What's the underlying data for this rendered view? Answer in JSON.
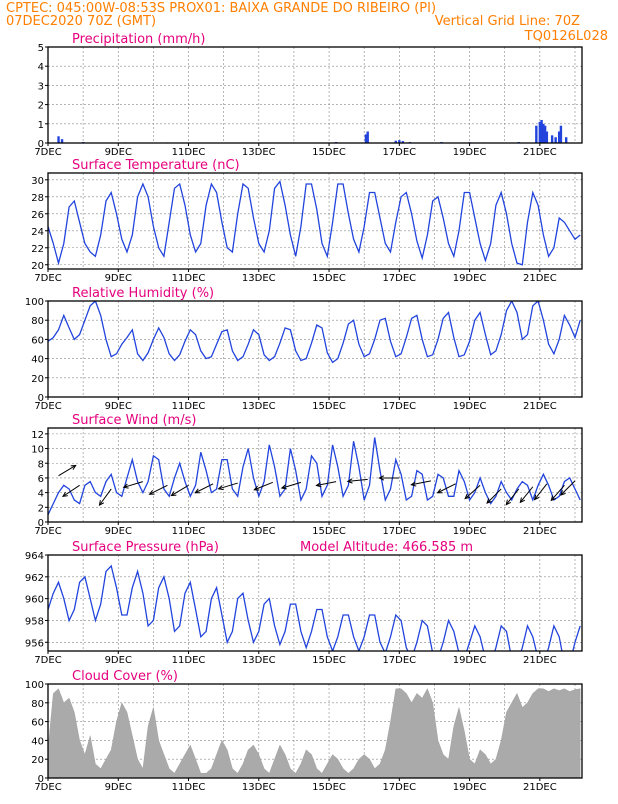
{
  "header": {
    "line1": "CPTEC:  045:00W-08:53S   PROX01: BAIXA GRANDE DO RIBEIRO (PI)",
    "line2_left": "07DEC2020 70Z (GMT)",
    "line2_right": "Vertical Grid Line: 70Z",
    "line3_right": "TQ0126L028"
  },
  "colors": {
    "header": "#ff7f00",
    "title": "#e6007e",
    "line": "#2244dd",
    "bar": "#2244dd",
    "cloud": "#aaaaaa"
  },
  "x_tick_labels": [
    "7DEC",
    "9DEC",
    "11DEC",
    "13DEC",
    "15DEC",
    "17DEC",
    "19DEC",
    "21DEC"
  ],
  "x_range_days": [
    7,
    22.2
  ],
  "chart_data": [
    {
      "type": "bar",
      "title": "Precipitation (mm/h)",
      "ylim": [
        0,
        5
      ],
      "yticks": [
        0,
        1,
        2,
        3,
        4,
        5
      ],
      "x": [
        7.3,
        7.4,
        8.0,
        9.2,
        10.4,
        11.6,
        12.8,
        14.0,
        15.2,
        16.05,
        16.1,
        16.9,
        17.0,
        17.1,
        17.3,
        18.2,
        19.0,
        19.4,
        20.4,
        20.9,
        21.0,
        21.05,
        21.1,
        21.15,
        21.2,
        21.35,
        21.45,
        21.55,
        21.6,
        21.75
      ],
      "values": [
        0.35,
        0.2,
        0.05,
        0.03,
        0.03,
        0.02,
        0.02,
        0.03,
        0.05,
        0.45,
        0.6,
        0.12,
        0.15,
        0.1,
        0.05,
        0.05,
        0.04,
        0.03,
        0.05,
        0.9,
        1.1,
        1.2,
        1.0,
        0.9,
        0.6,
        0.4,
        0.3,
        0.6,
        0.9,
        0.3
      ]
    },
    {
      "type": "line",
      "title": "Surface Temperature (nC)",
      "ylim": [
        19.5,
        30.8
      ],
      "yticks": [
        20,
        22,
        24,
        26,
        28,
        30
      ],
      "x": [
        7.0,
        7.15,
        7.3,
        7.45,
        7.6,
        7.75,
        7.9,
        8.05,
        8.2,
        8.35,
        8.5,
        8.65,
        8.8,
        8.95,
        9.1,
        9.25,
        9.4,
        9.55,
        9.7,
        9.85,
        10.0,
        10.15,
        10.3,
        10.45,
        10.6,
        10.75,
        10.9,
        11.05,
        11.2,
        11.35,
        11.5,
        11.65,
        11.8,
        11.95,
        12.1,
        12.25,
        12.4,
        12.55,
        12.7,
        12.85,
        13.0,
        13.15,
        13.3,
        13.45,
        13.6,
        13.75,
        13.9,
        14.05,
        14.2,
        14.35,
        14.5,
        14.65,
        14.8,
        14.95,
        15.1,
        15.25,
        15.4,
        15.55,
        15.7,
        15.85,
        16.0,
        16.15,
        16.3,
        16.45,
        16.6,
        16.75,
        16.9,
        17.05,
        17.2,
        17.35,
        17.5,
        17.65,
        17.8,
        17.95,
        18.1,
        18.25,
        18.4,
        18.55,
        18.7,
        18.85,
        19.0,
        19.15,
        19.3,
        19.45,
        19.6,
        19.75,
        19.9,
        20.05,
        20.2,
        20.35,
        20.5,
        20.65,
        20.8,
        20.95,
        21.1,
        21.25,
        21.4,
        21.55,
        21.7,
        21.85,
        22.0,
        22.15
      ],
      "values": [
        24.5,
        22.5,
        20.2,
        22.5,
        26.8,
        27.5,
        25.0,
        22.5,
        21.5,
        21.0,
        23.5,
        27.5,
        28.5,
        26.0,
        23.0,
        21.5,
        23.5,
        28.0,
        29.5,
        28.0,
        24.5,
        22.0,
        21.0,
        25.0,
        29.0,
        29.5,
        27.0,
        23.5,
        21.5,
        22.5,
        27.0,
        29.5,
        28.5,
        25.0,
        22.0,
        21.5,
        26.0,
        29.5,
        29.0,
        25.5,
        22.5,
        21.5,
        24.0,
        29.0,
        29.8,
        27.0,
        23.5,
        21.0,
        24.5,
        29.5,
        29.5,
        26.5,
        22.5,
        21.0,
        25.0,
        29.5,
        29.5,
        26.0,
        23.0,
        21.5,
        24.5,
        28.5,
        28.5,
        25.5,
        22.5,
        21.5,
        25.0,
        28.0,
        28.5,
        26.0,
        22.8,
        20.8,
        23.5,
        27.5,
        28.0,
        25.5,
        22.5,
        21.0,
        24.0,
        28.5,
        28.5,
        25.5,
        22.5,
        20.5,
        22.5,
        27.0,
        28.5,
        26.0,
        22.5,
        20.2,
        20.0,
        25.0,
        28.5,
        27.0,
        23.5,
        21.0,
        22.0,
        25.5,
        25.0,
        24.0,
        23.0,
        23.5
      ]
    },
    {
      "type": "line",
      "title": "Relative Humidity (%)",
      "ylim": [
        0,
        100
      ],
      "yticks": [
        0,
        20,
        40,
        60,
        80,
        100
      ],
      "x": [
        7.0,
        7.15,
        7.3,
        7.45,
        7.6,
        7.75,
        7.9,
        8.05,
        8.2,
        8.35,
        8.5,
        8.65,
        8.8,
        8.95,
        9.1,
        9.25,
        9.4,
        9.55,
        9.7,
        9.85,
        10.0,
        10.15,
        10.3,
        10.45,
        10.6,
        10.75,
        10.9,
        11.05,
        11.2,
        11.35,
        11.5,
        11.65,
        11.8,
        11.95,
        12.1,
        12.25,
        12.4,
        12.55,
        12.7,
        12.85,
        13.0,
        13.15,
        13.3,
        13.45,
        13.6,
        13.75,
        13.9,
        14.05,
        14.2,
        14.35,
        14.5,
        14.65,
        14.8,
        14.95,
        15.1,
        15.25,
        15.4,
        15.55,
        15.7,
        15.85,
        16.0,
        16.15,
        16.3,
        16.45,
        16.6,
        16.75,
        16.9,
        17.05,
        17.2,
        17.35,
        17.5,
        17.65,
        17.8,
        17.95,
        18.1,
        18.25,
        18.4,
        18.55,
        18.7,
        18.85,
        19.0,
        19.15,
        19.3,
        19.45,
        19.6,
        19.75,
        19.9,
        20.05,
        20.2,
        20.35,
        20.5,
        20.65,
        20.8,
        20.95,
        21.1,
        21.25,
        21.4,
        21.55,
        21.7,
        21.85,
        22.0,
        22.15
      ],
      "values": [
        58,
        62,
        70,
        85,
        72,
        60,
        65,
        80,
        95,
        100,
        85,
        60,
        42,
        45,
        55,
        62,
        70,
        45,
        38,
        46,
        60,
        72,
        62,
        45,
        38,
        44,
        58,
        70,
        65,
        48,
        40,
        42,
        55,
        68,
        70,
        48,
        38,
        42,
        55,
        70,
        65,
        44,
        38,
        42,
        56,
        72,
        70,
        48,
        38,
        40,
        56,
        75,
        72,
        46,
        36,
        40,
        56,
        76,
        80,
        55,
        42,
        45,
        60,
        80,
        82,
        58,
        42,
        45,
        62,
        82,
        85,
        60,
        42,
        44,
        60,
        82,
        88,
        62,
        42,
        44,
        58,
        80,
        88,
        65,
        44,
        48,
        65,
        90,
        100,
        88,
        60,
        65,
        95,
        100,
        80,
        55,
        45,
        60,
        85,
        75,
        62,
        80
      ]
    },
    {
      "type": "line",
      "title": "Surface Wind (m/s)",
      "ylim": [
        0,
        12.8
      ],
      "yticks": [
        0,
        2,
        4,
        6,
        8,
        10,
        12
      ],
      "x": [
        7.0,
        7.15,
        7.3,
        7.45,
        7.6,
        7.75,
        7.9,
        8.05,
        8.2,
        8.35,
        8.5,
        8.65,
        8.8,
        8.95,
        9.1,
        9.25,
        9.4,
        9.55,
        9.7,
        9.85,
        10.0,
        10.15,
        10.3,
        10.45,
        10.6,
        10.75,
        10.9,
        11.05,
        11.2,
        11.35,
        11.5,
        11.65,
        11.8,
        11.95,
        12.1,
        12.25,
        12.4,
        12.55,
        12.7,
        12.85,
        13.0,
        13.15,
        13.3,
        13.45,
        13.6,
        13.75,
        13.9,
        14.05,
        14.2,
        14.35,
        14.5,
        14.65,
        14.8,
        14.95,
        15.1,
        15.25,
        15.4,
        15.55,
        15.7,
        15.85,
        16.0,
        16.15,
        16.3,
        16.45,
        16.6,
        16.75,
        16.9,
        17.05,
        17.2,
        17.35,
        17.5,
        17.65,
        17.8,
        17.95,
        18.1,
        18.25,
        18.4,
        18.55,
        18.7,
        18.85,
        19.0,
        19.15,
        19.3,
        19.45,
        19.6,
        19.75,
        19.9,
        20.05,
        20.2,
        20.35,
        20.5,
        20.65,
        20.8,
        20.95,
        21.1,
        21.25,
        21.4,
        21.55,
        21.7,
        21.85,
        22.0,
        22.15
      ],
      "values": [
        1.0,
        2.5,
        4.0,
        5.0,
        4.5,
        3.0,
        2.5,
        5.0,
        5.5,
        4.0,
        3.5,
        5.5,
        6.5,
        4.0,
        3.5,
        6.0,
        8.5,
        5.5,
        4.0,
        5.5,
        9.0,
        8.5,
        4.5,
        3.5,
        6.0,
        8.0,
        5.5,
        3.5,
        5.0,
        9.5,
        7.0,
        4.0,
        4.5,
        8.5,
        8.5,
        4.5,
        3.5,
        7.5,
        10.0,
        6.0,
        3.5,
        5.5,
        10.5,
        7.5,
        3.5,
        4.5,
        10.0,
        7.0,
        3.0,
        4.5,
        9.0,
        8.0,
        3.5,
        5.0,
        10.5,
        7.5,
        3.5,
        5.0,
        11.0,
        7.5,
        3.0,
        5.0,
        11.5,
        7.0,
        3.0,
        4.5,
        8.5,
        6.5,
        3.0,
        3.5,
        7.0,
        6.5,
        3.0,
        3.5,
        6.5,
        6.0,
        3.5,
        3.5,
        7.0,
        5.5,
        3.0,
        4.0,
        6.0,
        4.0,
        2.5,
        3.5,
        5.5,
        4.0,
        3.0,
        4.5,
        5.5,
        5.0,
        3.0,
        5.0,
        6.5,
        5.0,
        3.0,
        3.5,
        5.5,
        6.0,
        4.5,
        3.0
      ],
      "vectors": [
        {
          "x": 7.3,
          "y": 6.3,
          "u": 1,
          "v": 0.6
        },
        {
          "x": 7.9,
          "y": 5.0,
          "u": -0.9,
          "v": -0.6
        },
        {
          "x": 8.8,
          "y": 4.5,
          "u": -0.8,
          "v": -1.1
        },
        {
          "x": 9.7,
          "y": 5.5,
          "u": -1,
          "v": -0.3
        },
        {
          "x": 10.4,
          "y": 5.0,
          "u": -1,
          "v": -0.5
        },
        {
          "x": 11.0,
          "y": 5.0,
          "u": -1,
          "v": -0.6
        },
        {
          "x": 11.7,
          "y": 5.2,
          "u": -1,
          "v": -0.5
        },
        {
          "x": 12.4,
          "y": 5.3,
          "u": -1,
          "v": -0.3
        },
        {
          "x": 13.4,
          "y": 5.4,
          "u": -1,
          "v": -0.4
        },
        {
          "x": 14.2,
          "y": 5.4,
          "u": -1,
          "v": -0.3
        },
        {
          "x": 15.2,
          "y": 5.5,
          "u": -1,
          "v": -0.2
        },
        {
          "x": 16.1,
          "y": 5.8,
          "u": -1,
          "v": -0.1
        },
        {
          "x": 17.0,
          "y": 6.0,
          "u": -1,
          "v": 0
        },
        {
          "x": 17.9,
          "y": 5.6,
          "u": -1,
          "v": -0.2
        },
        {
          "x": 18.6,
          "y": 5.2,
          "u": -1,
          "v": -0.5
        },
        {
          "x": 19.3,
          "y": 5.0,
          "u": -0.9,
          "v": -0.8
        },
        {
          "x": 19.9,
          "y": 4.5,
          "u": -0.9,
          "v": -0.9
        },
        {
          "x": 20.4,
          "y": 4.5,
          "u": -0.8,
          "v": -1.0
        },
        {
          "x": 20.8,
          "y": 4.8,
          "u": -0.8,
          "v": -1.0
        },
        {
          "x": 21.2,
          "y": 5.2,
          "u": -0.7,
          "v": -0.9
        },
        {
          "x": 21.7,
          "y": 5.0,
          "u": -0.7,
          "v": -0.8
        },
        {
          "x": 22.0,
          "y": 5.6,
          "u": -0.6,
          "v": -0.6
        }
      ]
    },
    {
      "type": "line",
      "title": "Surface Pressure (hPa)",
      "annotation": "Model Altitude: 466.585 m",
      "ylim": [
        955.2,
        964
      ],
      "yticks": [
        956,
        958,
        960,
        962,
        964
      ],
      "x": [
        7.0,
        7.15,
        7.3,
        7.45,
        7.6,
        7.75,
        7.9,
        8.05,
        8.2,
        8.35,
        8.5,
        8.65,
        8.8,
        8.95,
        9.1,
        9.25,
        9.4,
        9.55,
        9.7,
        9.85,
        10.0,
        10.15,
        10.3,
        10.45,
        10.6,
        10.75,
        10.9,
        11.05,
        11.2,
        11.35,
        11.5,
        11.65,
        11.8,
        11.95,
        12.1,
        12.25,
        12.4,
        12.55,
        12.7,
        12.85,
        13.0,
        13.15,
        13.3,
        13.45,
        13.6,
        13.75,
        13.9,
        14.05,
        14.2,
        14.35,
        14.5,
        14.65,
        14.8,
        14.95,
        15.1,
        15.25,
        15.4,
        15.55,
        15.7,
        15.85,
        16.0,
        16.15,
        16.3,
        16.45,
        16.6,
        16.75,
        16.9,
        17.05,
        17.2,
        17.35,
        17.5,
        17.65,
        17.8,
        17.95,
        18.1,
        18.25,
        18.4,
        18.55,
        18.7,
        18.85,
        19.0,
        19.15,
        19.3,
        19.45,
        19.6,
        19.75,
        19.9,
        20.05,
        20.2,
        20.35,
        20.5,
        20.65,
        20.8,
        20.95,
        21.1,
        21.25,
        21.4,
        21.55,
        21.7,
        21.85,
        22.0,
        22.15
      ],
      "values": [
        959.0,
        960.5,
        961.5,
        960.0,
        958.0,
        959.0,
        961.5,
        962.0,
        960.0,
        958.0,
        959.5,
        962.5,
        963.0,
        961.0,
        958.5,
        958.5,
        961.0,
        962.5,
        960.5,
        957.5,
        958.0,
        961.0,
        962.0,
        960.0,
        957.0,
        957.5,
        960.5,
        961.5,
        959.0,
        956.5,
        957.0,
        960.0,
        961.0,
        958.5,
        956.0,
        957.0,
        960.0,
        960.5,
        958.0,
        956.0,
        957.0,
        959.5,
        960.0,
        957.5,
        955.8,
        957.0,
        959.5,
        959.5,
        957.0,
        955.5,
        957.0,
        959.0,
        959.0,
        956.5,
        955.2,
        956.5,
        958.5,
        958.5,
        956.5,
        955.2,
        956.5,
        958.5,
        958.5,
        956.0,
        955.0,
        956.5,
        958.5,
        958.0,
        955.5,
        954.5,
        956.0,
        958.0,
        957.5,
        955.0,
        954.5,
        956.0,
        958.0,
        957.0,
        955.0,
        954.5,
        956.0,
        957.5,
        956.5,
        954.5,
        954.0,
        955.5,
        957.5,
        957.0,
        954.5,
        954.0,
        955.5,
        957.5,
        956.5,
        954.5,
        954.0,
        955.5,
        957.5,
        956.5,
        954.0,
        954.0,
        956.0,
        957.5
      ]
    },
    {
      "type": "area",
      "title": "Cloud Cover (%)",
      "ylim": [
        0,
        100
      ],
      "yticks": [
        0,
        20,
        40,
        60,
        80,
        100
      ],
      "x": [
        7.0,
        7.15,
        7.3,
        7.45,
        7.6,
        7.75,
        7.9,
        8.05,
        8.2,
        8.35,
        8.5,
        8.65,
        8.8,
        8.95,
        9.1,
        9.25,
        9.4,
        9.55,
        9.7,
        9.85,
        10.0,
        10.15,
        10.3,
        10.45,
        10.6,
        10.75,
        10.9,
        11.05,
        11.2,
        11.35,
        11.5,
        11.65,
        11.8,
        11.95,
        12.1,
        12.25,
        12.4,
        12.55,
        12.7,
        12.85,
        13.0,
        13.15,
        13.3,
        13.45,
        13.6,
        13.75,
        13.9,
        14.05,
        14.2,
        14.35,
        14.5,
        14.65,
        14.8,
        14.95,
        15.1,
        15.25,
        15.4,
        15.55,
        15.7,
        15.85,
        16.0,
        16.15,
        16.3,
        16.45,
        16.6,
        16.75,
        16.9,
        17.05,
        17.2,
        17.35,
        17.5,
        17.65,
        17.8,
        17.95,
        18.1,
        18.25,
        18.4,
        18.55,
        18.7,
        18.85,
        19.0,
        19.15,
        19.3,
        19.45,
        19.6,
        19.75,
        19.9,
        20.05,
        20.2,
        20.35,
        20.5,
        20.65,
        20.8,
        20.95,
        21.1,
        21.25,
        21.4,
        21.55,
        21.7,
        21.85,
        22.0,
        22.15
      ],
      "values": [
        30,
        90,
        95,
        80,
        85,
        70,
        40,
        25,
        45,
        15,
        10,
        20,
        30,
        60,
        80,
        70,
        45,
        20,
        10,
        55,
        75,
        40,
        25,
        10,
        5,
        15,
        25,
        35,
        20,
        5,
        5,
        10,
        25,
        40,
        30,
        10,
        5,
        15,
        30,
        35,
        25,
        10,
        5,
        20,
        35,
        25,
        10,
        5,
        15,
        30,
        25,
        10,
        5,
        15,
        25,
        20,
        10,
        5,
        10,
        20,
        25,
        20,
        10,
        15,
        30,
        60,
        95,
        95,
        90,
        80,
        90,
        85,
        95,
        80,
        40,
        25,
        20,
        55,
        75,
        50,
        20,
        15,
        30,
        25,
        15,
        20,
        40,
        70,
        80,
        90,
        75,
        80,
        90,
        95,
        95,
        92,
        95,
        93,
        95,
        92,
        94,
        95
      ]
    }
  ]
}
